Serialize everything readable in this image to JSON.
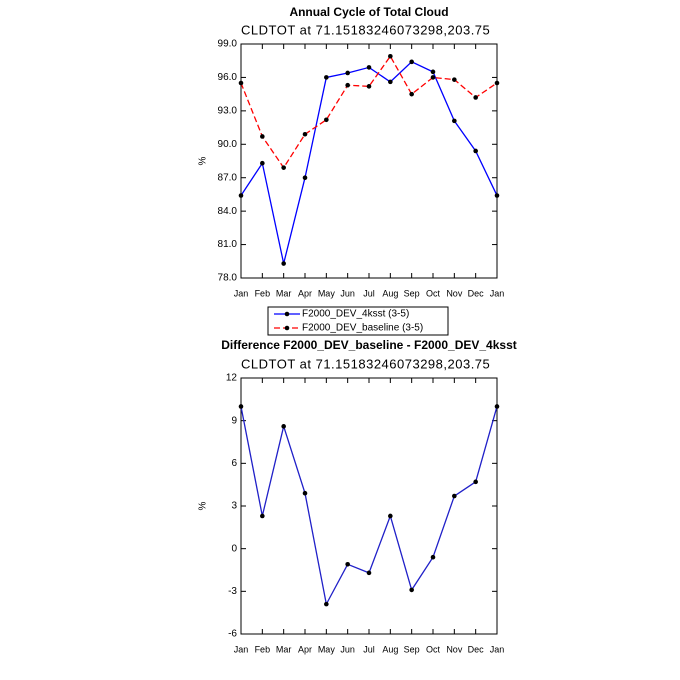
{
  "chart_data": [
    {
      "type": "line",
      "title": "Annual Cycle of Total Cloud",
      "subtitle": "CLDTOT at 71.15183246073298,203.75",
      "y_label": "%",
      "categories": [
        "Jan",
        "Feb",
        "Mar",
        "Apr",
        "May",
        "Jun",
        "Jul",
        "Aug",
        "Sep",
        "Oct",
        "Nov",
        "Dec",
        "Jan"
      ],
      "series": [
        {
          "name": "F2000_DEV_4ksst (3-5)",
          "color": "#0000ff",
          "style": "solid",
          "values": [
            85.4,
            88.3,
            79.3,
            87.0,
            96.0,
            96.4,
            96.9,
            95.6,
            97.4,
            96.5,
            92.1,
            89.4,
            85.4
          ]
        },
        {
          "name": "F2000_DEV_baseline (3-5)",
          "color": "#ff0000",
          "style": "dashed",
          "values": [
            95.5,
            90.7,
            87.9,
            90.9,
            92.2,
            95.3,
            95.2,
            97.9,
            94.5,
            96.0,
            95.8,
            94.2,
            95.5
          ]
        }
      ],
      "ylim": [
        78,
        99
      ],
      "yticks": [
        {
          "value": 78,
          "label": "78.0"
        },
        {
          "value": 81,
          "label": "81.0"
        },
        {
          "value": 84,
          "label": "84.0"
        },
        {
          "value": 87,
          "label": "87.0"
        },
        {
          "value": 90,
          "label": "90.0"
        },
        {
          "value": 93,
          "label": "93.0"
        },
        {
          "value": 96,
          "label": "96.0"
        },
        {
          "value": 99,
          "label": "99.0"
        }
      ],
      "legend": "bottom"
    },
    {
      "type": "line",
      "title": "Difference F2000_DEV_baseline - F2000_DEV_4ksst",
      "subtitle": "CLDTOT at 71.15183246073298,203.75",
      "y_label": "%",
      "categories": [
        "Jan",
        "Feb",
        "Mar",
        "Apr",
        "May",
        "Jun",
        "Jul",
        "Aug",
        "Sep",
        "Oct",
        "Nov",
        "Dec",
        "Jan"
      ],
      "series": [
        {
          "color": "#2020c8",
          "style": "solid",
          "values": [
            10.0,
            2.3,
            8.6,
            3.9,
            -3.9,
            -1.1,
            -1.7,
            2.3,
            -2.9,
            -0.6,
            3.7,
            4.7,
            10.0
          ]
        }
      ],
      "ylim": [
        -6,
        12
      ],
      "yticks": [
        -6,
        -3,
        0,
        3,
        6,
        9,
        12
      ]
    }
  ]
}
